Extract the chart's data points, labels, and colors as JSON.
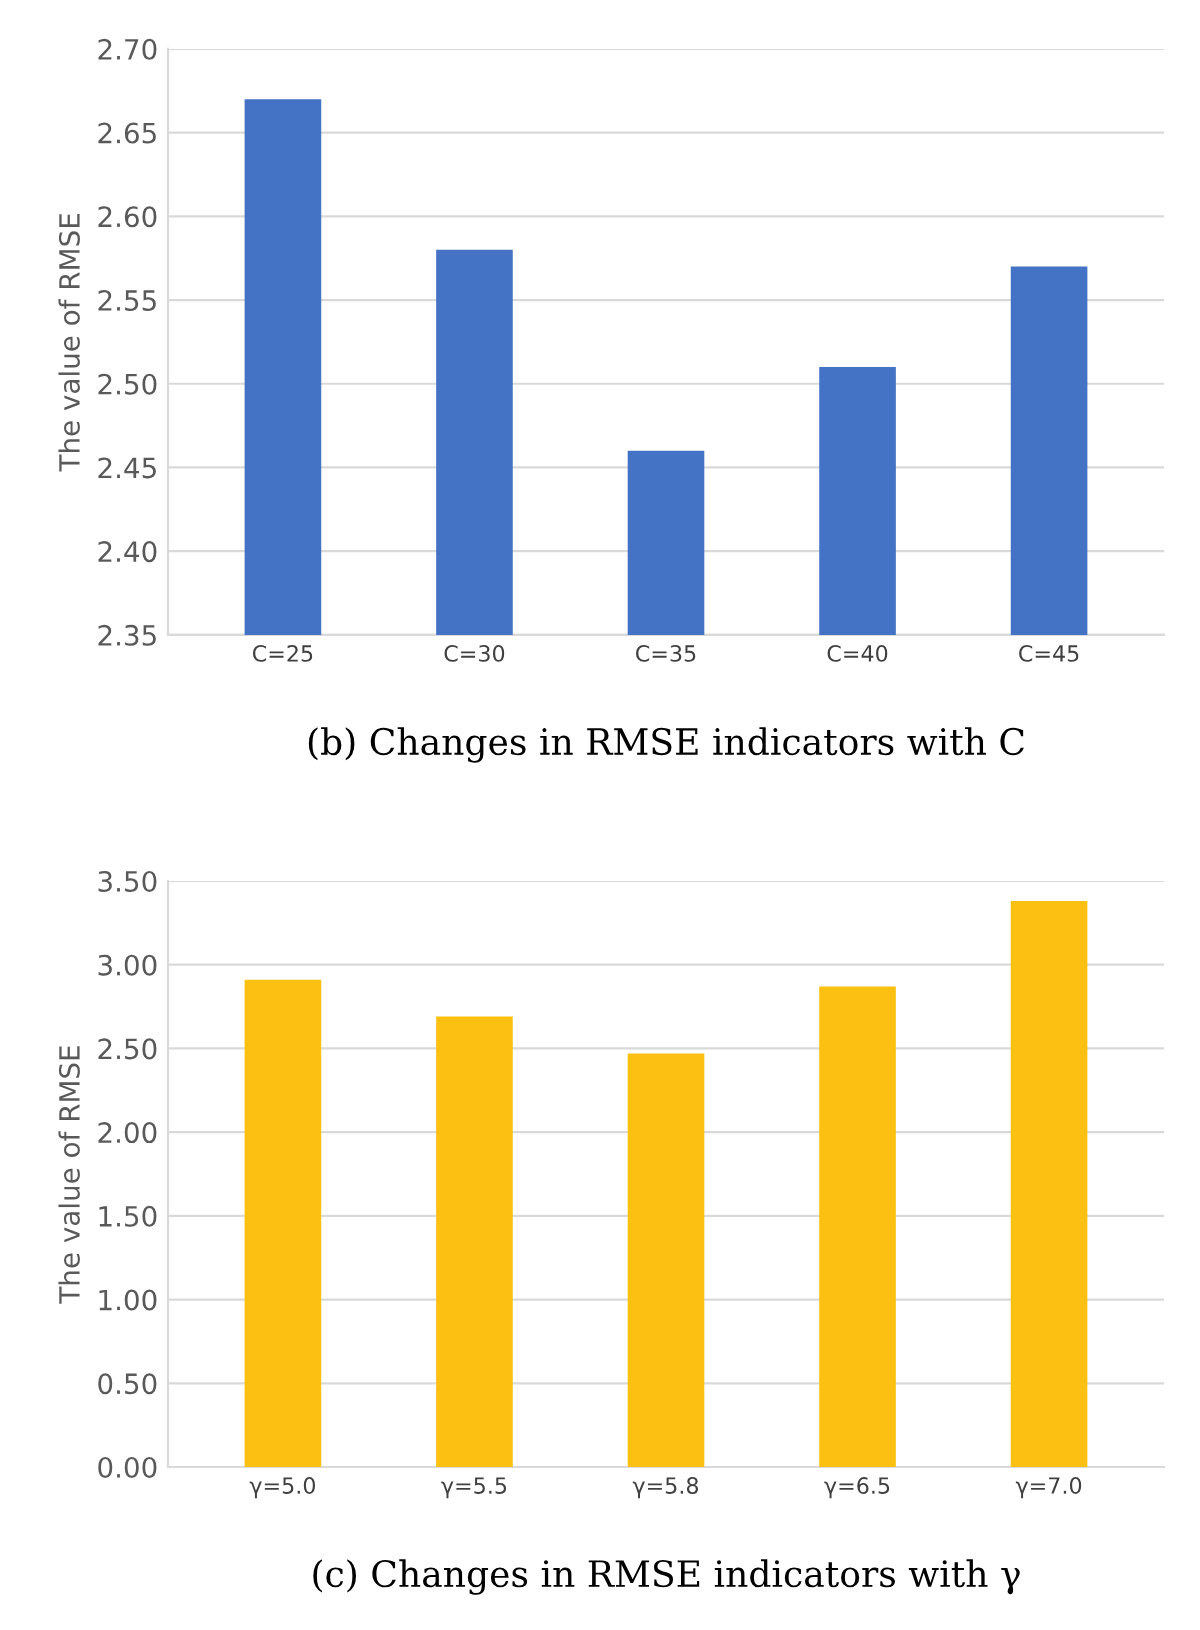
{
  "chart_data": [
    {
      "type": "bar",
      "xlabel": "(b) Changes in RMSE indicators with C",
      "ylabel": "The value of RMSE",
      "categories": [
        "C=25",
        "C=30",
        "C=35",
        "C=40",
        "C=45"
      ],
      "values": [
        2.67,
        2.58,
        2.46,
        2.51,
        2.57
      ],
      "color": "#4472c4",
      "ylim": [
        2.35,
        2.7
      ],
      "yticks": [
        {
          "value": 2.35,
          "label": "2.35"
        },
        {
          "value": 2.4,
          "label": "2.40"
        },
        {
          "value": 2.45,
          "label": "2.45"
        },
        {
          "value": 2.5,
          "label": "2.50"
        },
        {
          "value": 2.55,
          "label": "2.55"
        },
        {
          "value": 2.6,
          "label": "2.60"
        },
        {
          "value": 2.65,
          "label": "2.65"
        },
        {
          "value": 2.7,
          "label": "2.70"
        }
      ],
      "grid": "y"
    },
    {
      "type": "bar",
      "xlabel": "(c) Changes in RMSE indicators with γ",
      "ylabel": "The value of RMSE",
      "categories": [
        "γ=5.0",
        "γ=5.5",
        "γ=5.8",
        "γ=6.5",
        "γ=7.0"
      ],
      "values": [
        2.91,
        2.69,
        2.47,
        2.87,
        3.38
      ],
      "color": "#fcc012",
      "ylim": [
        0,
        3.5
      ],
      "yticks": [
        {
          "value": 0,
          "label": "0.00"
        },
        {
          "value": 0.5,
          "label": "0.50"
        },
        {
          "value": 1,
          "label": "1.00"
        },
        {
          "value": 1.5,
          "label": "1.50"
        },
        {
          "value": 2,
          "label": "2.00"
        },
        {
          "value": 2.5,
          "label": "2.50"
        },
        {
          "value": 3,
          "label": "3.00"
        },
        {
          "value": 3.5,
          "label": "3.50"
        }
      ],
      "grid": "y"
    }
  ]
}
